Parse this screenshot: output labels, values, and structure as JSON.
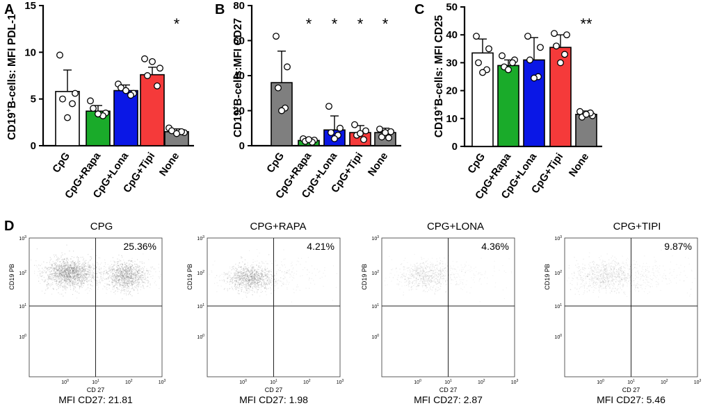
{
  "chart_data": [
    {
      "panel": "A",
      "type": "bar",
      "ylabel_parts": [
        "CD19",
        "+",
        "B-cells: MFI PDL-1"
      ],
      "ylim": [
        0,
        15
      ],
      "yticks": [
        "0",
        "5",
        "10",
        "15"
      ],
      "categories": [
        "CpG",
        "CpG+Rapa",
        "CpG+Lona",
        "CpG+Tipi",
        "None"
      ],
      "values": [
        5.8,
        3.7,
        5.9,
        7.6,
        1.5
      ],
      "errors": [
        2.3,
        0.6,
        0.6,
        0.8,
        0.3
      ],
      "points": [
        [
          9.7,
          5.6,
          5.0,
          4.5,
          3.0
        ],
        [
          4.8,
          3.5,
          4.0,
          3.2,
          3.4
        ],
        [
          6.6,
          5.6,
          6.2,
          5.4,
          5.9
        ],
        [
          9.3,
          8.3,
          7.5,
          6.4,
          9.0
        ],
        [
          1.9,
          1.4,
          1.6,
          1.5,
          1.3
        ]
      ],
      "colors": [
        "#ffffff",
        "#1aab2a",
        "#0a17e6",
        "#f53a3a",
        "#7f7f7f"
      ],
      "annotations": [
        {
          "category": "None",
          "text": "*"
        }
      ]
    },
    {
      "panel": "B",
      "type": "bar",
      "ylabel_parts": [
        "CD19",
        "+",
        "B-cells:MFI CD27"
      ],
      "ylim": [
        0,
        80
      ],
      "yticks": [
        "0",
        "20",
        "40",
        "60",
        "80"
      ],
      "categories": [
        "CpG",
        "CpG+Rapa",
        "CpG+Lona",
        "CpG+Tipi",
        "None"
      ],
      "values": [
        36,
        3,
        9,
        7.5,
        7.5
      ],
      "errors": [
        18,
        1,
        8,
        4,
        2.5
      ],
      "points": [
        [
          62.5,
          45.0,
          33.0,
          21.5,
          20.0
        ],
        [
          4.0,
          3.2,
          2.5,
          2.0,
          3.5
        ],
        [
          22.5,
          10.0,
          7.5,
          6.0,
          4.0
        ],
        [
          12.0,
          8.5,
          6.0,
          3.5,
          7.0
        ],
        [
          9.5,
          8.0,
          5.0,
          4.5,
          7.5
        ]
      ],
      "colors": [
        "#7f7f7f",
        "#1aab2a",
        "#0a17e6",
        "#f53a3a",
        "#7f7f7f"
      ],
      "annotations": [
        {
          "category": "CpG+Rapa",
          "text": "*"
        },
        {
          "category": "CpG+Lona",
          "text": "*"
        },
        {
          "category": "CpG+Tipi",
          "text": "*"
        },
        {
          "category": "None",
          "text": "*"
        }
      ]
    },
    {
      "panel": "C",
      "type": "bar",
      "ylabel_parts": [
        "CD19",
        "+",
        "B-cells: MFI CD25"
      ],
      "ylim": [
        0,
        50
      ],
      "yticks": [
        "0",
        "10",
        "20",
        "30",
        "40",
        "50"
      ],
      "categories": [
        "CpG",
        "CpG+Rapa",
        "CpG+Lona",
        "CpG+Tipi",
        "None"
      ],
      "values": [
        33.5,
        29,
        31,
        35.5,
        11.5
      ],
      "errors": [
        5,
        2,
        8,
        4.5,
        1.2
      ],
      "points": [
        [
          39.5,
          35.0,
          30.0,
          27.5,
          26.5
        ],
        [
          32.5,
          31.0,
          28.5,
          30.0,
          27.5
        ],
        [
          39.5,
          35.5,
          31.0,
          25.0,
          24.5
        ],
        [
          40.5,
          40.0,
          36.0,
          33.0,
          30.0
        ],
        [
          12.5,
          11.0,
          10.5,
          12.0,
          11.5
        ]
      ],
      "colors": [
        "#ffffff",
        "#1aab2a",
        "#0a17e6",
        "#f53a3a",
        "#7f7f7f"
      ],
      "annotations": [
        {
          "category": "None",
          "text": "**"
        }
      ]
    }
  ],
  "panel_d": {
    "letter": "D",
    "x_axis_label": "CD 27",
    "y_axis_label": "CD19 PB",
    "ticks": [
      "10",
      "0",
      "1",
      "2",
      "3"
    ],
    "plots": [
      {
        "title": "CPG",
        "percent": "25.36%",
        "mfi": "MFI CD27: 21.81"
      },
      {
        "title": "CPG+RAPA",
        "percent": "4.21%",
        "mfi": "MFI CD27: 1.98"
      },
      {
        "title": "CPG+LONA",
        "percent": "4.36%",
        "mfi": "MFI CD27: 2.87"
      },
      {
        "title": "CPG+TIPI",
        "percent": "9.87%",
        "mfi": "MFI CD27: 5.46"
      }
    ]
  }
}
